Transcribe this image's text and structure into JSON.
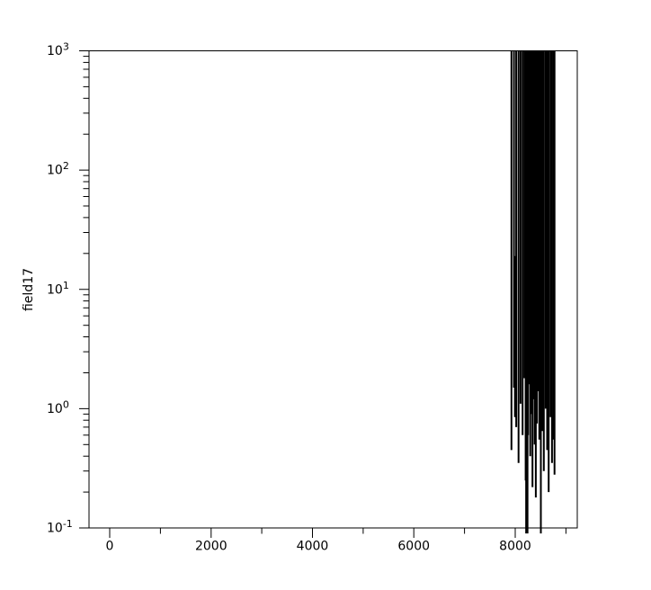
{
  "figure": {
    "background_color": "#ffffff"
  },
  "chart_data": {
    "type": "line",
    "ylabel": "field17",
    "axis_color": "#000000",
    "line_color": "#000000",
    "background_color": "#ffffff",
    "grid": false,
    "legend": "none",
    "x_axis": {
      "scale": "linear",
      "min": -408,
      "max": 9224,
      "major_ticks": [
        {
          "value": 0,
          "label": "0"
        },
        {
          "value": 2000,
          "label": "2000"
        },
        {
          "value": 4000,
          "label": "4000"
        },
        {
          "value": 6000,
          "label": "6000"
        },
        {
          "value": 8000,
          "label": "8000"
        }
      ],
      "minor_ticks": [
        1000,
        3000,
        5000,
        7000,
        9000
      ]
    },
    "y_axis": {
      "scale": "log",
      "min": 0.1,
      "max": 1000,
      "major_ticks": [
        {
          "value": 1000,
          "base": "10",
          "exponent": "3"
        },
        {
          "value": 100,
          "base": "10",
          "exponent": "2"
        },
        {
          "value": 10,
          "base": "10",
          "exponent": "1"
        },
        {
          "value": 1,
          "base": "10",
          "exponent": "0"
        },
        {
          "value": 0.1,
          "base": "10",
          "exponent": "-1"
        }
      ],
      "minor_tick_multiples": [
        2,
        3,
        4,
        5,
        6,
        7,
        8,
        9
      ]
    },
    "series": [
      {
        "name": "field17",
        "color": "#000000",
        "description": "Signal is absent/zero for x < 7900; between x≈7925 and x≈8775 it oscillates violently between peaks above 1000 (clipped at top frame) and valleys between ~0.09 and ~1.8. Rendered as vertical strokes [x, y_min, y_max, optional_stroke_width]. Two valleys dip just below the 0.1 axis floor.",
        "spikes": [
          [
            7925,
            0.45,
            1000
          ],
          [
            7975,
            1.5,
            1000
          ],
          [
            7995,
            0.85,
            19
          ],
          [
            8020,
            0.7,
            1000
          ],
          [
            8065,
            0.35,
            1000
          ],
          [
            8105,
            1.1,
            1000
          ],
          [
            8145,
            0.6,
            1000
          ],
          [
            8180,
            1.8,
            1000
          ],
          [
            8205,
            0.25,
            1000
          ],
          [
            8228,
            0.09,
            1000,
            3.5
          ],
          [
            8252,
            0.6,
            1000
          ],
          [
            8274,
            1.6,
            1000
          ],
          [
            8296,
            0.4,
            1000
          ],
          [
            8318,
            0.9,
            1000
          ],
          [
            8340,
            0.22,
            1000
          ],
          [
            8362,
            1.2,
            1000
          ],
          [
            8384,
            0.5,
            1000
          ],
          [
            8406,
            0.18,
            1000
          ],
          [
            8428,
            0.75,
            1000
          ],
          [
            8450,
            1.4,
            1000
          ],
          [
            8475,
            0.55,
            1000
          ],
          [
            8505,
            0.09,
            1000
          ],
          [
            8535,
            0.65,
            1000
          ],
          [
            8565,
            0.3,
            1000
          ],
          [
            8600,
            1.0,
            1000
          ],
          [
            8630,
            0.45,
            1000
          ],
          [
            8660,
            0.2,
            1000
          ],
          [
            8695,
            0.85,
            1000
          ],
          [
            8725,
            0.35,
            1000
          ],
          [
            8755,
            0.55,
            1000
          ],
          [
            8775,
            0.28,
            1000
          ]
        ]
      }
    ]
  }
}
